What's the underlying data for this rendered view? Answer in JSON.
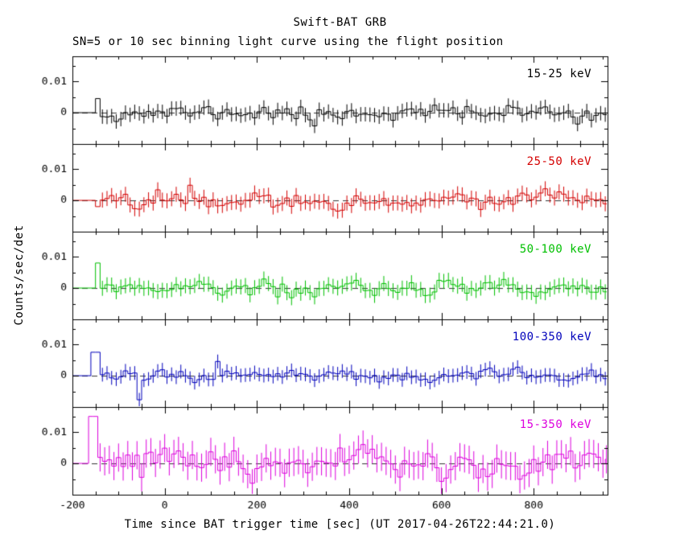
{
  "chart_data": {
    "type": "line",
    "title": "Swift-BAT GRB",
    "subtitle": "SN=5 or 10 sec binning light curve using the flight position",
    "xlabel": "Time since BAT trigger time [sec] (UT 2017-04-26T22:44:21.0)",
    "ylabel": "Counts/sec/det",
    "xlim": [
      -200,
      960
    ],
    "ylim": [
      -0.01,
      0.018
    ],
    "xticks_major": [
      -200,
      0,
      200,
      400,
      600,
      800
    ],
    "xtick_labels": [
      "-200",
      "0",
      "200",
      "400",
      "600",
      "800"
    ],
    "xtick_minor_step": 50,
    "yticks_major": [
      0,
      0.01
    ],
    "ytick_labels": [
      "0",
      "0.01"
    ],
    "ytick_minor_step": 0.005,
    "bin_sec": 10,
    "grid": false,
    "zero_line_style": "dashed",
    "zero_line_color": "#333333",
    "panels": [
      {
        "label": "15-25 keV",
        "color": "#000000",
        "seed": 11,
        "sigma": 0.0017,
        "err": 0.0023,
        "data_start": -150,
        "features": [
          {
            "t": -150,
            "w": 12,
            "amp": 0.0045
          },
          {
            "t": 315,
            "w": 10,
            "amp": -0.004
          }
        ]
      },
      {
        "label": "25-50 keV",
        "color": "#d40000",
        "seed": 22,
        "sigma": 0.0018,
        "err": 0.0024,
        "data_start": -150,
        "features": [
          {
            "t": -150,
            "w": 10,
            "amp": -0.002
          },
          {
            "t": 55,
            "w": 10,
            "amp": 0.004
          }
        ]
      },
      {
        "label": "50-100 keV",
        "color": "#00c000",
        "seed": 33,
        "sigma": 0.0017,
        "err": 0.0024,
        "data_start": -150,
        "features": [
          {
            "t": -150,
            "w": 12,
            "amp": 0.008
          },
          {
            "t": 240,
            "w": 10,
            "amp": -0.0045
          }
        ]
      },
      {
        "label": "100-350 keV",
        "color": "#0000bb",
        "seed": 44,
        "sigma": 0.0016,
        "err": 0.0022,
        "data_start": -160,
        "features": [
          {
            "t": -160,
            "w": 18,
            "amp": 0.0075
          },
          {
            "t": -60,
            "w": 10,
            "amp": -0.007
          },
          {
            "t": 115,
            "w": 8,
            "amp": 0.005
          }
        ]
      },
      {
        "label": "15-350 keV",
        "color": "#dd00dd",
        "seed": 55,
        "sigma": 0.0033,
        "err": 0.0045,
        "data_start": -165,
        "features": [
          {
            "t": -165,
            "w": 22,
            "amp": 0.015
          },
          {
            "t": -55,
            "w": 10,
            "amp": -0.008
          }
        ]
      }
    ]
  }
}
